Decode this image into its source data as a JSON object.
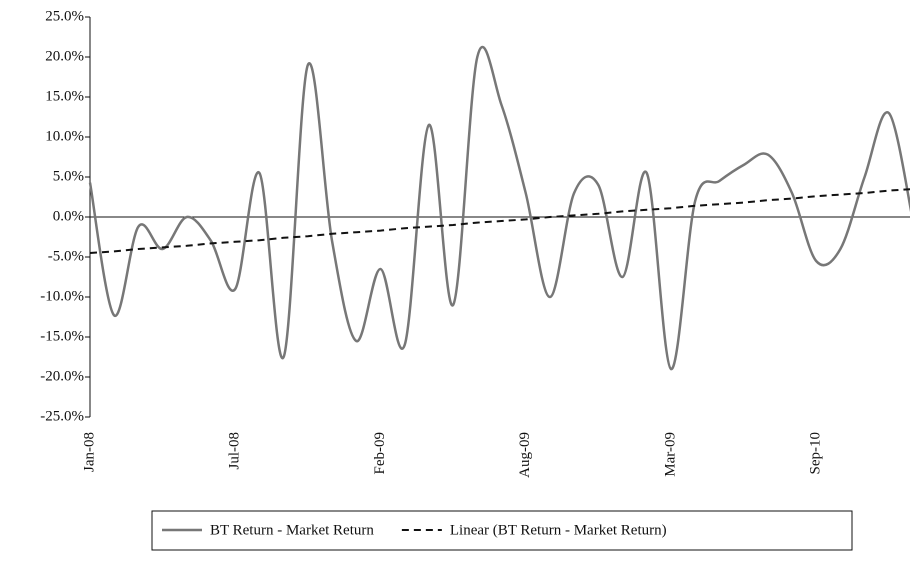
{
  "chart_data": {
    "type": "line",
    "categories": [
      "Jan-08",
      null,
      null,
      null,
      null,
      null,
      "Jul-08",
      null,
      null,
      null,
      null,
      null,
      "Feb-09",
      null,
      null,
      null,
      null,
      null,
      "Aug-09",
      null,
      null,
      null,
      null,
      null,
      "Mar-09",
      null,
      null,
      null,
      null,
      null,
      "Sep-10",
      null,
      null,
      null,
      null
    ],
    "series": [
      {
        "name": "BT Return - Market Return",
        "color": "#777777",
        "dash": false,
        "smooth": true,
        "values": [
          4.3,
          -12.3,
          -1.2,
          -4.0,
          0.0,
          -3.0,
          -9.0,
          5.5,
          -17.5,
          19.0,
          -3.0,
          -15.5,
          -6.5,
          -16.0,
          11.5,
          -11.0,
          20.0,
          14.0,
          3.0,
          -10.0,
          3.0,
          4.0,
          -7.5,
          5.5,
          -19.0,
          2.0,
          4.5,
          6.5,
          7.8,
          3.0,
          -5.5,
          -4.0,
          5.0,
          13.0,
          -0.5
        ]
      },
      {
        "name": "Linear (BT Return - Market Return)",
        "color": "#111111",
        "dash": true,
        "smooth": false,
        "values": [
          -4.5,
          -4.3,
          -4.0,
          -3.8,
          -3.6,
          -3.3,
          -3.1,
          -2.9,
          -2.6,
          -2.4,
          -2.1,
          -1.9,
          -1.7,
          -1.4,
          -1.2,
          -1.0,
          -0.7,
          -0.5,
          -0.3,
          0.0,
          0.2,
          0.4,
          0.7,
          0.9,
          1.1,
          1.4,
          1.6,
          1.8,
          2.1,
          2.3,
          2.6,
          2.8,
          3.0,
          3.3,
          3.5
        ]
      }
    ],
    "ylim": [
      -25,
      25
    ],
    "yticks": [
      {
        "value": -25,
        "label": "-25.0%"
      },
      {
        "value": -20,
        "label": "-20.0%"
      },
      {
        "value": -15,
        "label": "-15.0%"
      },
      {
        "value": -10,
        "label": "-10.0%"
      },
      {
        "value": -5,
        "label": "-5.0%"
      },
      {
        "value": 0,
        "label": "0.0%"
      },
      {
        "value": 5,
        "label": "5.0%"
      },
      {
        "value": 10,
        "label": "10.0%"
      },
      {
        "value": 15,
        "label": "15.0%"
      },
      {
        "value": 20,
        "label": "20.0%"
      },
      {
        "value": 25,
        "label": "25.0%"
      }
    ],
    "legend": "bottom"
  }
}
